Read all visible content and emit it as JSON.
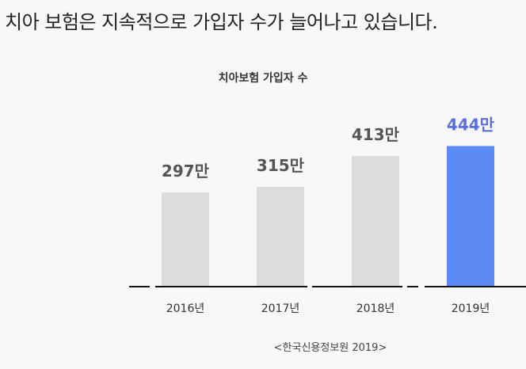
{
  "headline": "치아 보험은 지속적으로 가입자 수가 늘어나고 있습니다.",
  "chart_data": {
    "type": "bar",
    "title": "치아보험 가입자 수",
    "categories": [
      "2016년",
      "2017년",
      "2018년",
      "2019년"
    ],
    "values": [
      297,
      315,
      413,
      444
    ],
    "value_labels": [
      "297만",
      "315만",
      "413만",
      "444만"
    ],
    "unit": "만",
    "ylim": [
      0,
      500
    ],
    "grid": false,
    "colors": {
      "default": "#dcdcdc",
      "highlight": "#5b8af5",
      "label_default": "#555555",
      "label_highlight": "#5b6ee0"
    },
    "highlight_index": 3,
    "source": "<한국신용정보원 2019>"
  }
}
